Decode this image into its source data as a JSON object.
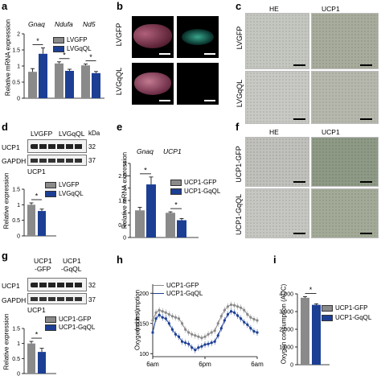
{
  "colors": {
    "gfp": "#8a8a8a",
    "gq": "#1c3f94",
    "micro_he": "#bdbdb9",
    "micro_ucp": "#9aa39a",
    "micro_ucp_dark": "#8e9b86"
  },
  "panels": {
    "a": "a",
    "b": "b",
    "c": "c",
    "d": "d",
    "e": "e",
    "f": "f",
    "g": "g",
    "h": "h",
    "i": "i"
  },
  "panel_a": {
    "ylabel": "Relative mRNA expression",
    "genes": [
      "Gnaq",
      "Ndufa",
      "Nd5"
    ],
    "legend": [
      "LVGFP",
      "LVGqQL"
    ],
    "star": "*",
    "ticks": [
      "0",
      "0.5",
      "1",
      "1.5",
      "2"
    ]
  },
  "panel_b": {
    "row1": "LVGFP",
    "row2": "LVGqQL"
  },
  "panel_c": {
    "col1": "HE",
    "col2": "UCP1",
    "row1": "LVGFP",
    "row2": "LVGqQL"
  },
  "panel_d": {
    "lanes_gfp": "LVGFP",
    "lanes_gq": "LVGqQL",
    "kda": "kDa",
    "band1": "UCP1",
    "band1_kda": "32",
    "band2": "GAPDH",
    "band2_kda": "37",
    "chart_title": "UCP1",
    "ylabel": "Relative expression",
    "legend": [
      "LVGFP",
      "LVGqQL"
    ],
    "star": "*",
    "ticks": [
      "0",
      "0.5",
      "1",
      "1.5"
    ]
  },
  "panel_e": {
    "ylabel": "Relative mRNA expression",
    "genes": [
      "Gnaq",
      "UCP1"
    ],
    "legend": [
      "UCP1-GFP",
      "UCP1-GqQL"
    ],
    "star": "*",
    "ticks": [
      "0",
      "0.5",
      "1",
      "1.5",
      "2",
      "2.5",
      "3"
    ]
  },
  "panel_f": {
    "col1": "HE",
    "col2": "UCP1",
    "row1": "UCP1-GFP",
    "row2": "UCP1-GqQL"
  },
  "panel_g": {
    "lanes_gfp": "UCP1\n-GFP",
    "lanes_gfp_l1": "UCP1",
    "lanes_gfp_l2": "-GFP",
    "lanes_gq_l1": "UCP1",
    "lanes_gq_l2": "-GqQL",
    "band1": "UCP1",
    "band1_kda": "32",
    "band2": "GAPDH",
    "band2_kda": "37",
    "chart_title": "UCP1",
    "ylabel": "Relative expression",
    "legend": [
      "UCP1-GFP",
      "UCP1-GqQL"
    ],
    "star": "*",
    "ticks": [
      "0",
      "0.5",
      "1",
      "1.5"
    ]
  },
  "panel_h": {
    "ylabel": "Oxygen consumption",
    "ylabel2": "(ml h⁻¹)",
    "legend": [
      "UCP1-GFP",
      "UCP1-GqQL"
    ],
    "xticks": [
      "6am",
      "6pm",
      "6am"
    ],
    "yticks": [
      "100",
      "150",
      "200"
    ]
  },
  "panel_i": {
    "ylabel": "Oxygen consumption (AUC)",
    "legend": [
      "UCP1-GFP",
      "UCP1-GqQL"
    ],
    "star": "*",
    "ticks": [
      "0",
      "1,000",
      "2,000",
      "3,000",
      "4,000"
    ]
  },
  "chart_data": [
    {
      "type": "bar",
      "id": "a",
      "categories": [
        "Gnaq",
        "Ndufa",
        "Nd5"
      ],
      "ylim": [
        0,
        2
      ],
      "series": [
        {
          "name": "LVGFP",
          "values": [
            0.82,
            1.08,
            1.02
          ],
          "err": [
            0.1,
            0.05,
            0.04
          ]
        },
        {
          "name": "LVGqQL",
          "values": [
            1.38,
            0.85,
            0.78
          ],
          "err": [
            0.18,
            0.05,
            0.05
          ]
        }
      ]
    },
    {
      "type": "bar",
      "id": "d",
      "categories": [
        "UCP1"
      ],
      "ylim": [
        0,
        1.5
      ],
      "series": [
        {
          "name": "LVGFP",
          "values": [
            1.0
          ],
          "err": [
            0.06
          ]
        },
        {
          "name": "LVGqQL",
          "values": [
            0.8
          ],
          "err": [
            0.06
          ]
        }
      ]
    },
    {
      "type": "bar",
      "id": "e",
      "categories": [
        "Gnaq",
        "UCP1"
      ],
      "ylim": [
        0,
        3
      ],
      "series": [
        {
          "name": "UCP1-GFP",
          "values": [
            1.1,
            1.0
          ],
          "err": [
            0.12,
            0.04
          ]
        },
        {
          "name": "UCP1-GqQL",
          "values": [
            2.15,
            0.7
          ],
          "err": [
            0.3,
            0.07
          ]
        }
      ]
    },
    {
      "type": "bar",
      "id": "g",
      "categories": [
        "UCP1"
      ],
      "ylim": [
        0,
        1.5
      ],
      "series": [
        {
          "name": "UCP1-GFP",
          "values": [
            1.0
          ],
          "err": [
            0.07
          ]
        },
        {
          "name": "UCP1-GqQL",
          "values": [
            0.72
          ],
          "err": [
            0.12
          ]
        }
      ]
    },
    {
      "type": "line",
      "id": "h",
      "ylim": [
        95,
        215
      ],
      "series": [
        {
          "name": "UCP1-GFP",
          "values": [
            155,
            168,
            172,
            170,
            168,
            165,
            162,
            160,
            158,
            150,
            140,
            135,
            132,
            130,
            128,
            126,
            128,
            132,
            135,
            138,
            150,
            162,
            172,
            178,
            181,
            180,
            178,
            176,
            172,
            165,
            160,
            157,
            155
          ]
        },
        {
          "name": "UCP1-GqQL",
          "values": [
            135,
            158,
            164,
            160,
            158,
            150,
            140,
            132,
            128,
            120,
            118,
            116,
            110,
            106,
            110,
            112,
            115,
            116,
            118,
            120,
            130,
            142,
            155,
            165,
            170,
            168,
            163,
            158,
            152,
            148,
            142,
            137,
            135
          ]
        }
      ]
    },
    {
      "type": "bar",
      "id": "i",
      "categories": [
        "AUC"
      ],
      "ylim": [
        0,
        4000
      ],
      "series": [
        {
          "name": "UCP1-GFP",
          "values": [
            3780
          ],
          "err": [
            60
          ]
        },
        {
          "name": "UCP1-GqQL",
          "values": [
            3380
          ],
          "err": [
            60
          ]
        }
      ]
    }
  ]
}
